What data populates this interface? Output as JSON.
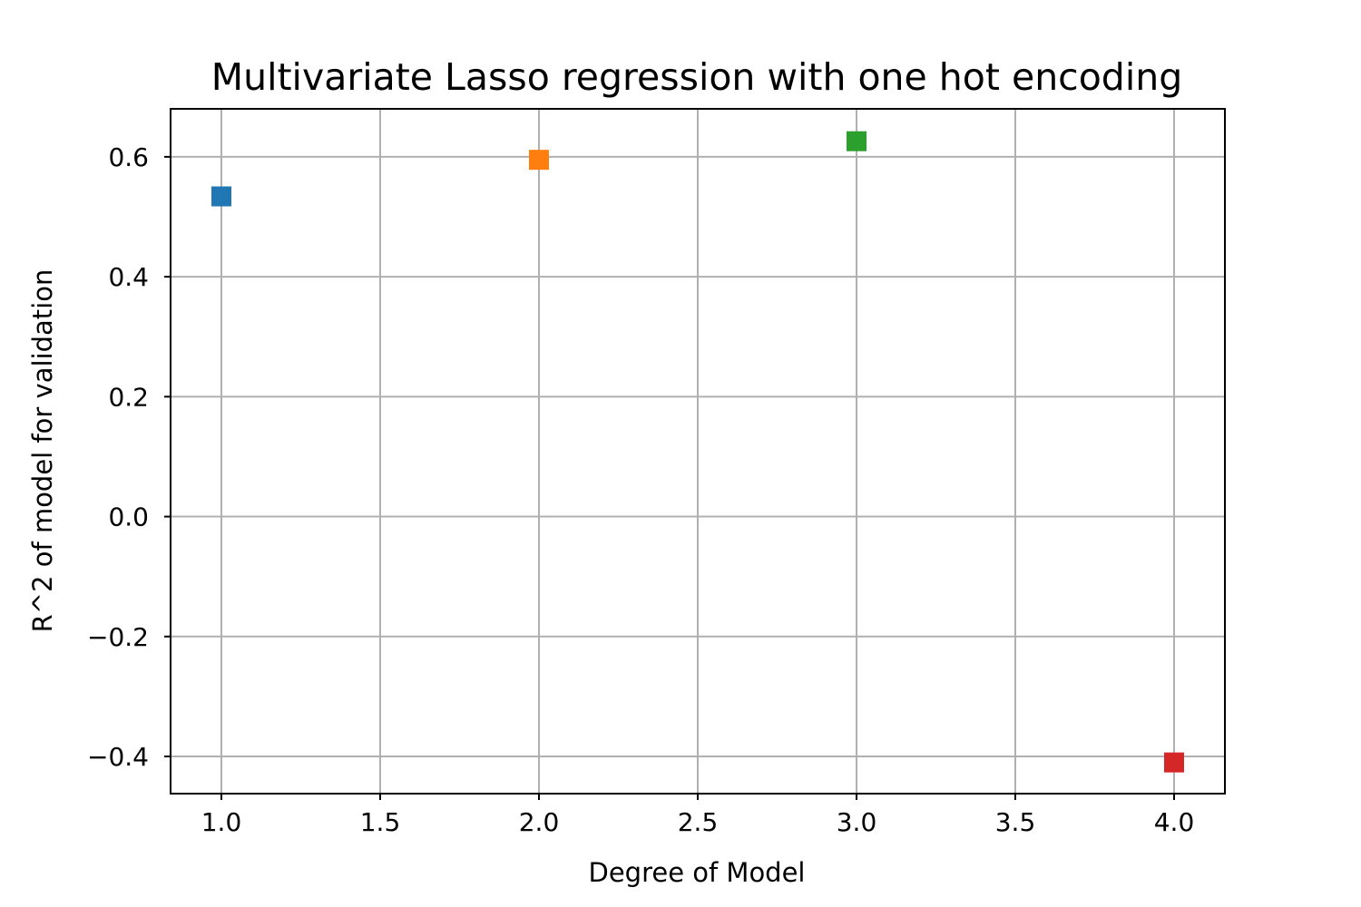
{
  "chart_data": {
    "type": "scatter",
    "title": "Multivariate Lasso regression with one hot encoding",
    "xlabel": "Degree of Model",
    "ylabel": "R^2 of model for validation",
    "xlim": [
      0.84,
      4.16
    ],
    "ylim": [
      -0.462,
      0.68
    ],
    "xticks": [
      1.0,
      1.5,
      2.0,
      2.5,
      3.0,
      3.5,
      4.0
    ],
    "xtick_labels": [
      "1.0",
      "1.5",
      "2.0",
      "2.5",
      "3.0",
      "3.5",
      "4.0"
    ],
    "yticks": [
      0.6,
      0.4,
      0.2,
      0.0,
      -0.2,
      -0.4
    ],
    "ytick_labels": [
      "0.6",
      "0.4",
      "0.2",
      "0.0",
      "−0.2",
      "−0.4"
    ],
    "grid": true,
    "marker": "square",
    "points": [
      {
        "x": 1.0,
        "y": 0.534,
        "color": "#1f77b4"
      },
      {
        "x": 2.0,
        "y": 0.595,
        "color": "#ff7f0e"
      },
      {
        "x": 3.0,
        "y": 0.626,
        "color": "#2ca02c"
      },
      {
        "x": 4.0,
        "y": -0.41,
        "color": "#d62728"
      }
    ]
  }
}
